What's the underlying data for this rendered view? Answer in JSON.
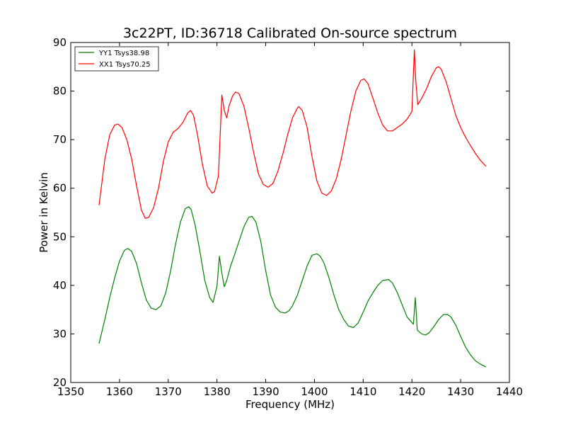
{
  "chart_data": {
    "type": "line",
    "title": "3c22PT, ID:36718 Calibrated On-source spectrum",
    "xlabel": "Frequency (MHz)",
    "ylabel": "Power in Kelvin",
    "xlim": [
      1350,
      1440
    ],
    "ylim": [
      20,
      90
    ],
    "xticks": [
      1350,
      1360,
      1370,
      1380,
      1390,
      1400,
      1410,
      1420,
      1430,
      1440
    ],
    "yticks": [
      20,
      30,
      40,
      50,
      60,
      70,
      80,
      90
    ],
    "grid": false,
    "legend_position": "top-left",
    "series": [
      {
        "name": "YY1 Tsys38.98",
        "color": "#008000",
        "x": [
          1355.8,
          1357,
          1358,
          1359,
          1360,
          1361,
          1361.7,
          1362.5,
          1363.5,
          1364.5,
          1365.5,
          1366.5,
          1367.5,
          1368.5,
          1369.5,
          1370.5,
          1371.5,
          1372.5,
          1373.5,
          1374.2,
          1374.7,
          1375.5,
          1376.5,
          1377.5,
          1378.5,
          1379.2,
          1380.0,
          1380.5,
          1381.0,
          1381.5,
          1382.0,
          1382.8,
          1383.5,
          1384.5,
          1385.5,
          1386.5,
          1387.2,
          1388.0,
          1389.0,
          1390.0,
          1391.0,
          1392.0,
          1393.0,
          1394.0,
          1394.8,
          1395.5,
          1396.5,
          1397.5,
          1398.5,
          1399.5,
          1400.5,
          1401.2,
          1402.0,
          1403.0,
          1404.0,
          1405.0,
          1406.0,
          1407.0,
          1408.0,
          1409.0,
          1410.0,
          1411.0,
          1412.0,
          1413.0,
          1414.0,
          1415.2,
          1416.0,
          1417.0,
          1418.0,
          1419.0,
          1420.3,
          1420.7,
          1421.1,
          1422.0,
          1422.8,
          1423.5,
          1424.5,
          1425.5,
          1426.5,
          1427.3,
          1428.0,
          1429.0,
          1430.0,
          1431.0,
          1432.0,
          1433.0,
          1434.0,
          1435.2
        ],
        "y": [
          28.0,
          33.0,
          37.5,
          41.5,
          45.0,
          47.2,
          47.6,
          47.0,
          44.5,
          40.5,
          37.0,
          35.3,
          35.0,
          35.8,
          38.5,
          43.0,
          48.5,
          53.0,
          55.8,
          56.2,
          55.6,
          52.5,
          47.0,
          41.0,
          37.5,
          36.5,
          39.8,
          46.0,
          42.5,
          39.7,
          41.0,
          44.0,
          46.0,
          49.0,
          52.0,
          54.0,
          54.2,
          53.0,
          49.0,
          43.0,
          38.0,
          35.5,
          34.5,
          34.3,
          34.8,
          35.8,
          38.0,
          41.0,
          44.0,
          46.2,
          46.5,
          46.0,
          44.5,
          41.5,
          38.0,
          35.0,
          33.0,
          31.6,
          31.3,
          32.3,
          34.5,
          36.8,
          38.5,
          40.0,
          41.0,
          41.2,
          40.5,
          38.5,
          36.0,
          33.5,
          32.0,
          37.5,
          30.8,
          30.0,
          29.8,
          30.2,
          31.5,
          33.0,
          34.0,
          34.0,
          33.5,
          31.8,
          29.5,
          27.3,
          25.7,
          24.5,
          23.8,
          23.2
        ]
      },
      {
        "name": "XX1 Tsys70.25",
        "color": "#ff0000",
        "x": [
          1355.8,
          1357,
          1358,
          1359,
          1359.7,
          1360.5,
          1361.5,
          1362.5,
          1363.5,
          1364.5,
          1365.3,
          1366.0,
          1367.0,
          1368.0,
          1369.0,
          1370.0,
          1371.0,
          1372.0,
          1373.0,
          1374.0,
          1374.6,
          1375.2,
          1376.0,
          1377.0,
          1378.0,
          1379.0,
          1379.5,
          1380.3,
          1381.0,
          1381.5,
          1382.0,
          1382.5,
          1383.2,
          1383.8,
          1384.5,
          1385.5,
          1386.5,
          1387.5,
          1388.5,
          1389.5,
          1390.5,
          1391.5,
          1392.5,
          1393.5,
          1394.5,
          1395.5,
          1396.5,
          1396.8,
          1397.5,
          1398.5,
          1399.5,
          1400.5,
          1401.5,
          1402.5,
          1403.5,
          1404.5,
          1405.5,
          1406.5,
          1407.5,
          1408.5,
          1409.5,
          1410.2,
          1411.0,
          1412.0,
          1413.0,
          1414.0,
          1415.0,
          1416.0,
          1417.0,
          1418.0,
          1419.0,
          1420.0,
          1420.5,
          1420.8,
          1421.2,
          1422.0,
          1423.0,
          1424.0,
          1425.0,
          1425.5,
          1426.0,
          1427.0,
          1428.0,
          1429.0,
          1430.0,
          1431.0,
          1432.0,
          1433.0,
          1434.0,
          1435.2
        ],
        "y": [
          56.5,
          66.0,
          71.0,
          73.0,
          73.2,
          72.5,
          70.0,
          66.0,
          60.5,
          55.5,
          53.8,
          54.0,
          56.0,
          60.0,
          65.5,
          69.5,
          71.5,
          72.3,
          73.5,
          75.5,
          76.0,
          75.0,
          71.0,
          65.0,
          60.5,
          59.0,
          59.3,
          62.5,
          79.2,
          76.0,
          74.5,
          77.0,
          79.0,
          79.8,
          79.5,
          77.0,
          72.5,
          67.5,
          63.0,
          60.8,
          60.2,
          61.0,
          63.5,
          67.0,
          71.0,
          74.5,
          76.5,
          76.8,
          76.0,
          72.5,
          66.5,
          61.5,
          59.0,
          58.5,
          59.5,
          62.0,
          66.0,
          71.0,
          76.0,
          80.0,
          82.2,
          82.5,
          81.5,
          78.5,
          75.5,
          73.0,
          71.8,
          71.8,
          72.5,
          73.2,
          74.2,
          75.8,
          88.5,
          82.0,
          77.2,
          78.5,
          80.5,
          83.0,
          84.8,
          85.0,
          84.5,
          82.0,
          78.5,
          75.0,
          72.5,
          70.5,
          68.8,
          67.2,
          65.8,
          64.5
        ]
      }
    ]
  }
}
